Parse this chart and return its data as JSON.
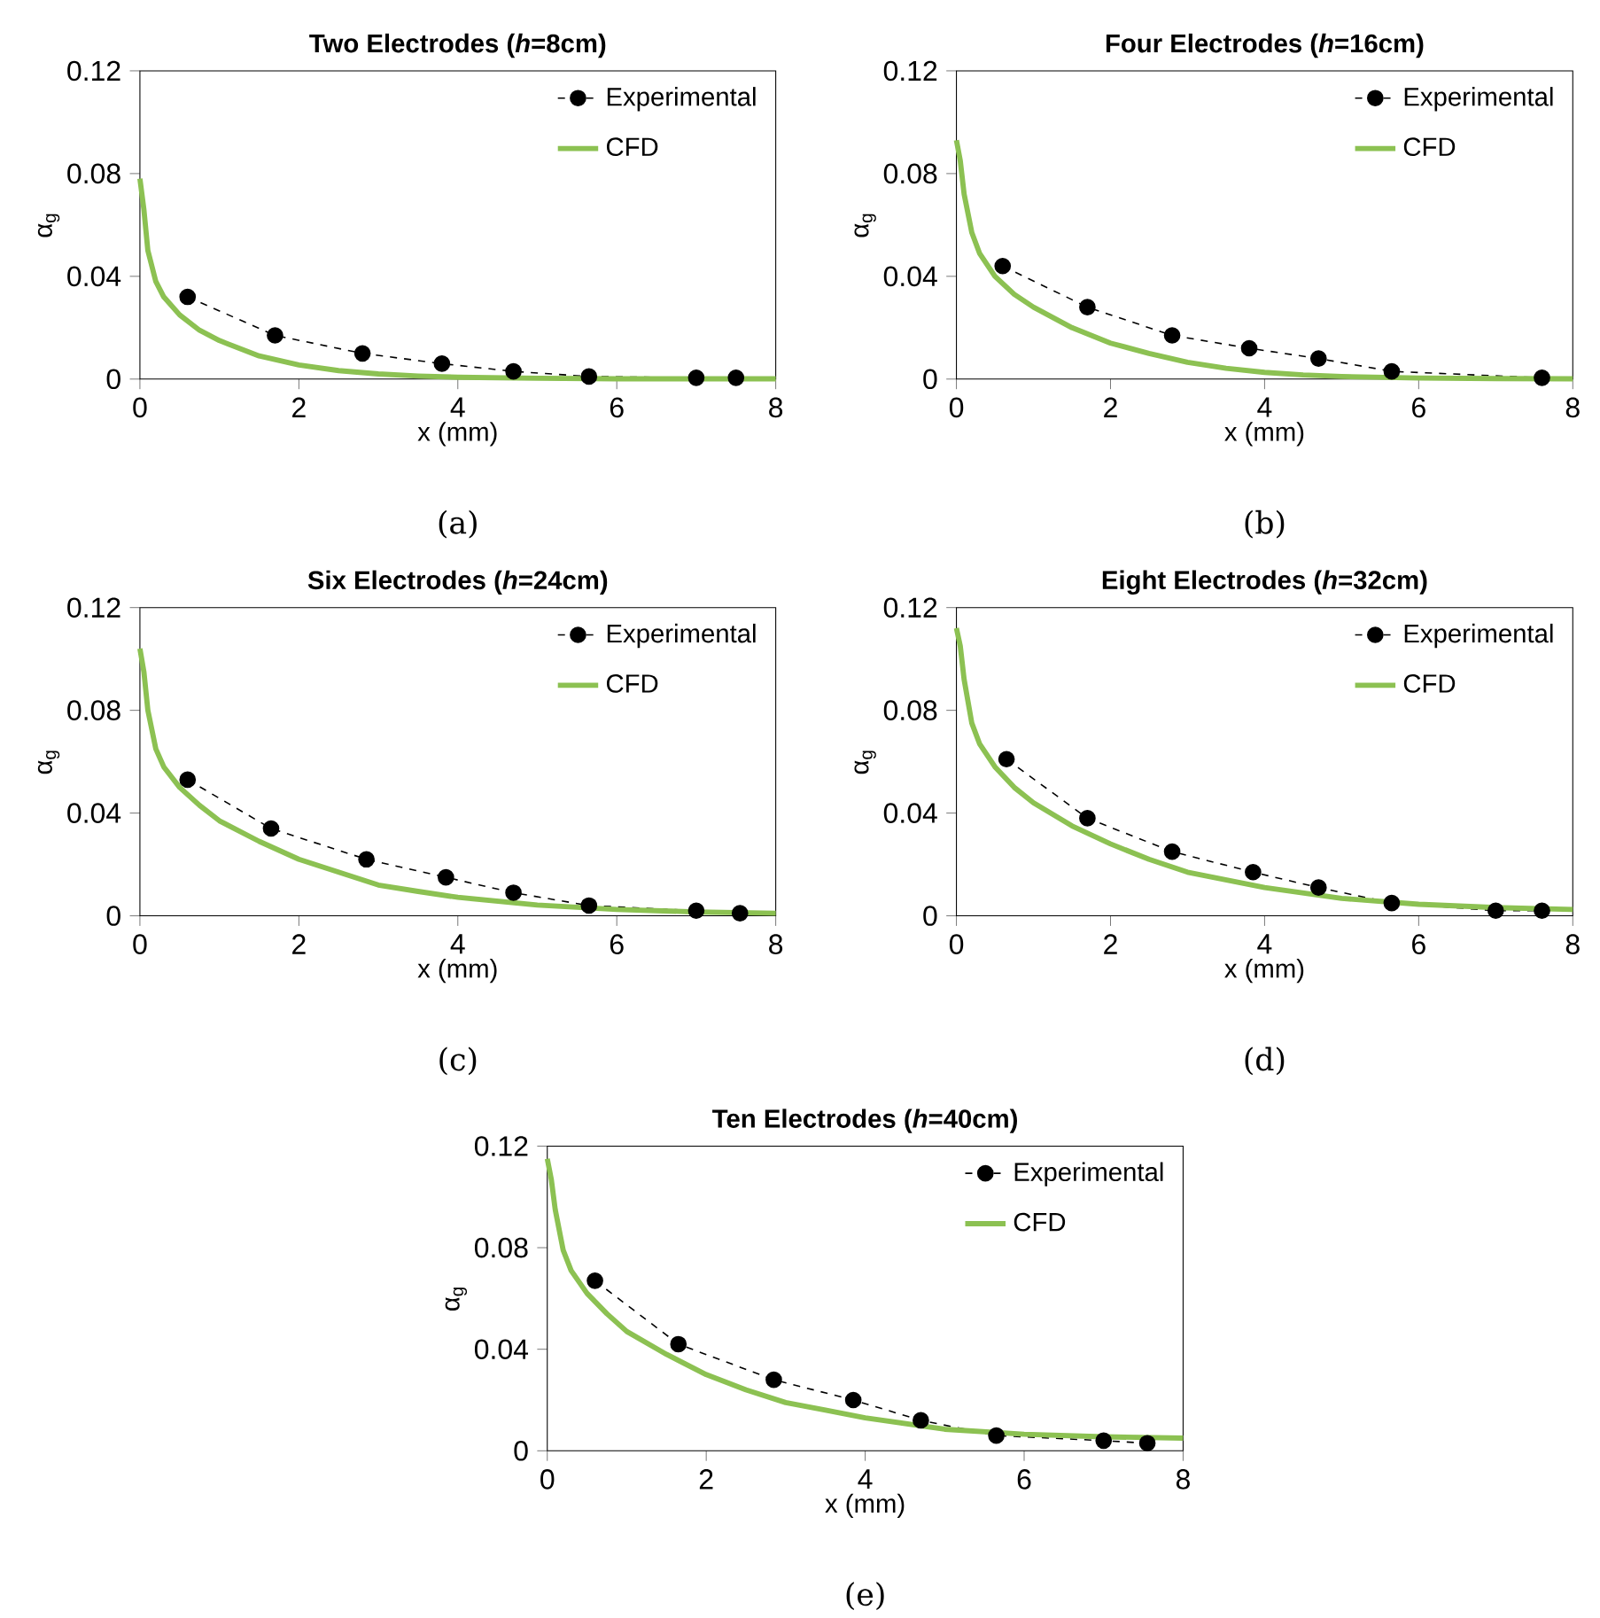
{
  "chart_data": [
    {
      "type": "line",
      "title": "Two Electrodes (*h*=8cm)",
      "xlabel": "x (mm)",
      "ylabel": "α$_{g}$",
      "annotations": [
        "(a)"
      ],
      "xlim": [
        0,
        8
      ],
      "ylim": [
        0,
        0.12
      ],
      "xticks": [
        0,
        2,
        4,
        6,
        8
      ],
      "yticks": [
        0,
        0.04,
        0.08,
        0.12
      ],
      "legend": "top right",
      "series": [
        {
          "name": "Experimental",
          "color": "#000000",
          "marker": "circle",
          "line_style": "dashed",
          "x": [
            0.6,
            1.7,
            2.8,
            3.8,
            4.7,
            5.65,
            7.0,
            7.5
          ],
          "values": [
            0.032,
            0.017,
            0.01,
            0.006,
            0.003,
            0.001,
            0.0005,
            0.0005
          ]
        },
        {
          "name": "CFD",
          "color": "#8cc152",
          "marker": "none",
          "line_style": "solid",
          "x": [
            0,
            0.05,
            0.1,
            0.2,
            0.3,
            0.5,
            0.75,
            1,
            1.5,
            2,
            2.5,
            3,
            3.5,
            4,
            5,
            6,
            7,
            8
          ],
          "values": [
            0.078,
            0.066,
            0.05,
            0.038,
            0.032,
            0.025,
            0.019,
            0.015,
            0.009,
            0.0055,
            0.0033,
            0.002,
            0.0012,
            0.0007,
            0.0003,
            0.0001,
            0.0001,
            0.0001
          ]
        }
      ]
    },
    {
      "type": "line",
      "title": "Four Electrodes (*h*=16cm)",
      "xlabel": "x (mm)",
      "ylabel": "α$_{g}$",
      "annotations": [
        "(b)"
      ],
      "xlim": [
        0,
        8
      ],
      "ylim": [
        0,
        0.12
      ],
      "xticks": [
        0,
        2,
        4,
        6,
        8
      ],
      "yticks": [
        0,
        0.04,
        0.08,
        0.12
      ],
      "legend": "top right",
      "series": [
        {
          "name": "Experimental",
          "color": "#000000",
          "marker": "circle",
          "line_style": "dashed",
          "x": [
            0.6,
            1.7,
            2.8,
            3.8,
            4.7,
            5.65,
            7.6
          ],
          "values": [
            0.044,
            0.028,
            0.017,
            0.012,
            0.008,
            0.003,
            0.0005
          ]
        },
        {
          "name": "CFD",
          "color": "#8cc152",
          "marker": "none",
          "line_style": "solid",
          "x": [
            0,
            0.05,
            0.1,
            0.2,
            0.3,
            0.5,
            0.75,
            1,
            1.5,
            2,
            2.5,
            3,
            3.5,
            4,
            4.5,
            5,
            6,
            7,
            8
          ],
          "values": [
            0.093,
            0.085,
            0.072,
            0.057,
            0.049,
            0.04,
            0.033,
            0.028,
            0.02,
            0.014,
            0.01,
            0.0065,
            0.0042,
            0.0026,
            0.0016,
            0.001,
            0.0004,
            0.0002,
            0.0001
          ]
        }
      ]
    },
    {
      "type": "line",
      "title": "Six Electrodes (*h*=24cm)",
      "xlabel": "x (mm)",
      "ylabel": "α$_{g}$",
      "annotations": [
        "(c)"
      ],
      "xlim": [
        0,
        8
      ],
      "ylim": [
        0,
        0.12
      ],
      "xticks": [
        0,
        2,
        4,
        6,
        8
      ],
      "yticks": [
        0,
        0.04,
        0.08,
        0.12
      ],
      "legend": "top right",
      "series": [
        {
          "name": "Experimental",
          "color": "#000000",
          "marker": "circle",
          "line_style": "dashed",
          "x": [
            0.6,
            1.65,
            2.85,
            3.85,
            4.7,
            5.65,
            7.0,
            7.55
          ],
          "values": [
            0.053,
            0.034,
            0.022,
            0.015,
            0.009,
            0.004,
            0.002,
            0.001
          ]
        },
        {
          "name": "CFD",
          "color": "#8cc152",
          "marker": "none",
          "line_style": "solid",
          "x": [
            0,
            0.05,
            0.1,
            0.2,
            0.3,
            0.5,
            0.75,
            1,
            1.5,
            2,
            2.5,
            3,
            3.5,
            4,
            5,
            6,
            7,
            8
          ],
          "values": [
            0.104,
            0.095,
            0.08,
            0.065,
            0.058,
            0.05,
            0.043,
            0.037,
            0.029,
            0.022,
            0.017,
            0.012,
            0.0095,
            0.0072,
            0.0042,
            0.0025,
            0.0015,
            0.001
          ]
        }
      ]
    },
    {
      "type": "line",
      "title": "Eight Electrodes (*h*=32cm)",
      "xlabel": "x (mm)",
      "ylabel": "α$_{g}$",
      "annotations": [
        "(d)"
      ],
      "xlim": [
        0,
        8
      ],
      "ylim": [
        0,
        0.12
      ],
      "xticks": [
        0,
        2,
        4,
        6,
        8
      ],
      "yticks": [
        0,
        0.04,
        0.08,
        0.12
      ],
      "legend": "top right",
      "series": [
        {
          "name": "Experimental",
          "color": "#000000",
          "marker": "circle",
          "line_style": "dashed",
          "x": [
            0.65,
            1.7,
            2.8,
            3.85,
            4.7,
            5.65,
            7.0,
            7.6
          ],
          "values": [
            0.061,
            0.038,
            0.025,
            0.017,
            0.011,
            0.005,
            0.002,
            0.002
          ]
        },
        {
          "name": "CFD",
          "color": "#8cc152",
          "marker": "none",
          "line_style": "solid",
          "x": [
            0,
            0.05,
            0.1,
            0.2,
            0.3,
            0.5,
            0.75,
            1,
            1.5,
            2,
            2.5,
            3,
            3.5,
            4,
            5,
            6,
            7,
            8
          ],
          "values": [
            0.112,
            0.105,
            0.092,
            0.075,
            0.067,
            0.058,
            0.05,
            0.044,
            0.035,
            0.028,
            0.022,
            0.017,
            0.014,
            0.011,
            0.0068,
            0.0045,
            0.0032,
            0.0025
          ]
        }
      ]
    },
    {
      "type": "line",
      "title": "Ten Electrodes (*h*=40cm)",
      "xlabel": "x (mm)",
      "ylabel": "α$_{g}$",
      "annotations": [
        "(e)"
      ],
      "xlim": [
        0,
        8
      ],
      "ylim": [
        0,
        0.12
      ],
      "xticks": [
        0,
        2,
        4,
        6,
        8
      ],
      "yticks": [
        0,
        0.04,
        0.08,
        0.12
      ],
      "legend": "top right",
      "series": [
        {
          "name": "Experimental",
          "color": "#000000",
          "marker": "circle",
          "line_style": "dashed",
          "x": [
            0.6,
            1.65,
            2.85,
            3.85,
            4.7,
            5.65,
            7.0,
            7.55
          ],
          "values": [
            0.067,
            0.042,
            0.028,
            0.02,
            0.012,
            0.006,
            0.004,
            0.003
          ]
        },
        {
          "name": "CFD",
          "color": "#8cc152",
          "marker": "none",
          "line_style": "solid",
          "x": [
            0,
            0.05,
            0.1,
            0.2,
            0.3,
            0.5,
            0.75,
            1,
            1.5,
            2,
            2.5,
            3,
            3.5,
            4,
            5,
            6,
            7,
            8
          ],
          "values": [
            0.115,
            0.107,
            0.095,
            0.079,
            0.071,
            0.062,
            0.054,
            0.047,
            0.038,
            0.03,
            0.024,
            0.019,
            0.016,
            0.013,
            0.0085,
            0.0065,
            0.0055,
            0.005
          ]
        }
      ]
    }
  ]
}
